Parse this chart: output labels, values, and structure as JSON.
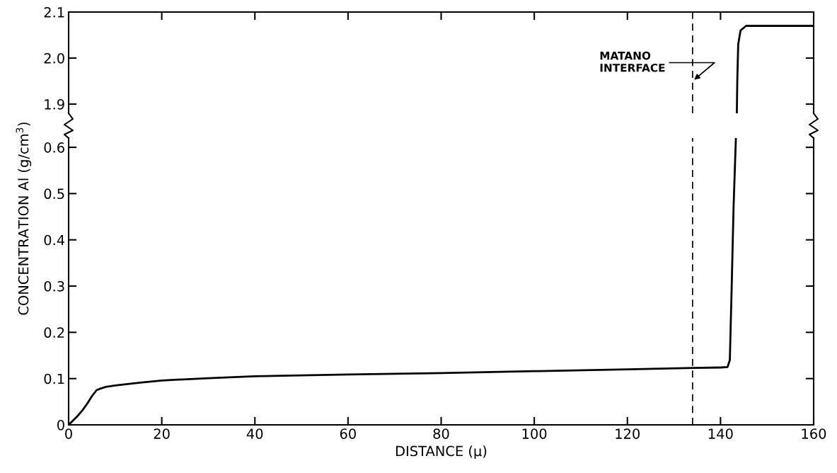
{
  "chart_data": [
    {
      "type": "line",
      "x": [
        143.5,
        143.6,
        143.8,
        144.3,
        145.5,
        150,
        160
      ],
      "series": [
        {
          "color": "#000000",
          "values": [
            1.88,
            1.95,
            2.03,
            2.06,
            2.07,
            2.07,
            2.07
          ]
        }
      ],
      "xlim": [
        0,
        160
      ],
      "xticks": [
        0,
        20,
        40,
        60,
        80,
        100,
        120,
        140,
        160
      ],
      "ylim": [
        1.88,
        2.1
      ],
      "yticks": [
        1.9,
        {
          "value": 2.0,
          "label": "2.0"
        },
        2.1
      ],
      "tick_labels": "y",
      "grid": false,
      "legend": false,
      "marker": "none",
      "line_style": "solid",
      "ref_lines": [
        {
          "axis": "x",
          "value": 134,
          "label": null,
          "line_style": "dashed",
          "color": "#000000"
        }
      ],
      "annotations": [
        {
          "text": "MATANO\nINTERFACE",
          "x": 134,
          "y": 1.95
        }
      ]
    },
    {
      "type": "line",
      "xlabel": "DISTANCE (μ)",
      "ylabel": "CONCENTRATION Al (g/cm$^{3}$)",
      "x": [
        0,
        1,
        2,
        3,
        4,
        5,
        6,
        7,
        8,
        10,
        15,
        20,
        30,
        40,
        60,
        80,
        100,
        120,
        134,
        140,
        141.5,
        142,
        142.4,
        142.8,
        143.3
      ],
      "series": [
        {
          "color": "#000000",
          "values": [
            0,
            0.01,
            0.02,
            0.032,
            0.046,
            0.062,
            0.075,
            0.079,
            0.082,
            0.085,
            0.091,
            0.096,
            0.101,
            0.105,
            0.109,
            0.112,
            0.116,
            0.12,
            0.123,
            0.124,
            0.125,
            0.14,
            0.3,
            0.47,
            0.62
          ]
        }
      ],
      "xlim": [
        0,
        160
      ],
      "xticks": [
        0,
        20,
        40,
        60,
        80,
        100,
        120,
        140,
        160
      ],
      "ylim": [
        0,
        0.62
      ],
      "yticks": [
        0,
        0.1,
        0.2,
        0.3,
        0.4,
        0.5,
        0.6
      ],
      "grid": false,
      "legend": false,
      "marker": "none",
      "line_style": "solid",
      "ref_lines": [
        {
          "axis": "x",
          "value": 134,
          "label": null,
          "line_style": "dashed",
          "color": "#000000"
        }
      ]
    }
  ]
}
